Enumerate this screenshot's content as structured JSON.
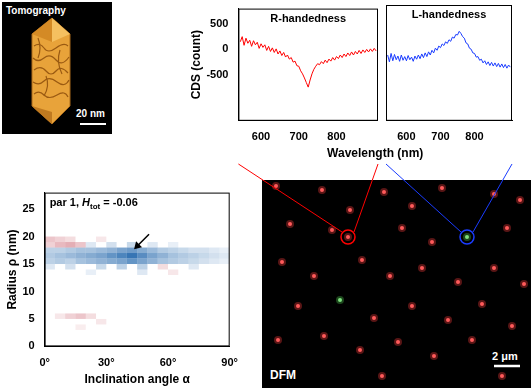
{
  "chart_data": [
    {
      "type": "line",
      "title": "R-handedness",
      "ylabel": "CDS (count)",
      "xlabel": "Wavelength (nm)",
      "xlim": [
        540,
        910
      ],
      "xticks": [
        600,
        700,
        800
      ],
      "ylim": [
        -1400,
        800
      ],
      "yticks": [
        -500,
        0,
        500
      ],
      "grid": false,
      "x": [
        545,
        550,
        555,
        560,
        565,
        570,
        575,
        580,
        585,
        590,
        595,
        600,
        605,
        610,
        615,
        620,
        625,
        630,
        635,
        640,
        645,
        650,
        655,
        660,
        665,
        670,
        675,
        680,
        685,
        690,
        695,
        700,
        705,
        710,
        715,
        720,
        725,
        730,
        735,
        740,
        745,
        750,
        755,
        760,
        765,
        770,
        775,
        780,
        785,
        790,
        795,
        800,
        805,
        810,
        815,
        820,
        825,
        830,
        835,
        840,
        845,
        850,
        855,
        860,
        865,
        870,
        875,
        880,
        885,
        890,
        895,
        900,
        905
      ],
      "series": [
        {
          "color": "#ff0000",
          "values": [
            150,
            250,
            80,
            220,
            120,
            180,
            60,
            170,
            90,
            140,
            20,
            110,
            40,
            90,
            -20,
            60,
            -40,
            30,
            -60,
            10,
            -90,
            -30,
            -120,
            -60,
            -150,
            -110,
            -190,
            -160,
            -250,
            -230,
            -320,
            -330,
            -420,
            -480,
            -560,
            -650,
            -740,
            -600,
            -480,
            -390,
            -330,
            -280,
            -300,
            -240,
            -280,
            -210,
            -260,
            -190,
            -230,
            -160,
            -210,
            -140,
            -180,
            -110,
            -160,
            -90,
            -140,
            -70,
            -120,
            -50,
            -110,
            -40,
            -90,
            -20,
            -80,
            -10,
            -60,
            0,
            -50,
            10,
            -40,
            20,
            -30
          ]
        }
      ]
    },
    {
      "type": "line",
      "title": "L-handedness",
      "tick_labels": "x",
      "xlim": [
        540,
        910
      ],
      "xticks": [
        600,
        700,
        800
      ],
      "ylim": [
        -1400,
        800
      ],
      "yticks": [
        -500,
        0,
        500
      ],
      "grid": false,
      "x": [
        545,
        550,
        555,
        560,
        565,
        570,
        575,
        580,
        585,
        590,
        595,
        600,
        605,
        610,
        615,
        620,
        625,
        630,
        635,
        640,
        645,
        650,
        655,
        660,
        665,
        670,
        675,
        680,
        685,
        690,
        695,
        700,
        705,
        710,
        715,
        720,
        725,
        730,
        735,
        740,
        745,
        750,
        755,
        760,
        765,
        770,
        775,
        780,
        785,
        790,
        795,
        800,
        805,
        810,
        815,
        820,
        825,
        830,
        835,
        840,
        845,
        850,
        855,
        860,
        865,
        870,
        875,
        880,
        885,
        890,
        895,
        900,
        905
      ],
      "series": [
        {
          "color": "#1a3cff",
          "values": [
            -150,
            -280,
            -120,
            -260,
            -140,
            -240,
            -170,
            -270,
            -150,
            -250,
            -180,
            -260,
            -160,
            -240,
            -190,
            -270,
            -170,
            -230,
            -150,
            -220,
            -130,
            -200,
            -110,
            -180,
            -90,
            -150,
            -60,
            -110,
            -20,
            -60,
            20,
            -10,
            60,
            30,
            100,
            70,
            140,
            110,
            190,
            170,
            240,
            230,
            300,
            260,
            200,
            170,
            80,
            60,
            -20,
            -40,
            -110,
            -120,
            -190,
            -180,
            -250,
            -230,
            -300,
            -260,
            -330,
            -280,
            -350,
            -290,
            -360,
            -300,
            -370,
            -310,
            -380,
            -320,
            -390,
            -330,
            -400,
            -340,
            -380
          ]
        }
      ]
    },
    {
      "type": "heatmap",
      "title_parts": [
        "par 1, ",
        "H",
        "tot",
        " = -0.06"
      ],
      "xlabel": "Inclination angle α",
      "ylabel": "Radius ρ (nm)",
      "xlim": [
        0,
        90
      ],
      "xticks": [
        {
          "value": 0,
          "label": "0°"
        },
        {
          "value": 30,
          "label": "30°"
        },
        {
          "value": 60,
          "label": "60°"
        },
        {
          "value": 90,
          "label": "90°"
        }
      ],
      "ylim": [
        0,
        28
      ],
      "yticks": [
        0,
        5,
        10,
        15,
        20,
        25
      ],
      "grid": false,
      "cell_size": {
        "x": 5,
        "y": 1
      },
      "colorbar": {
        "range": [
          -1,
          1
        ],
        "colors": [
          "#2166ac",
          "#b2182b"
        ]
      },
      "cells": [
        [
          20,
          13,
          -0.1
        ],
        [
          45,
          13,
          -0.15
        ],
        [
          60,
          13,
          0.1
        ],
        [
          0,
          14,
          -0.15
        ],
        [
          10,
          14,
          -0.2
        ],
        [
          25,
          14,
          -0.25
        ],
        [
          35,
          14,
          -0.3
        ],
        [
          45,
          14,
          -0.3
        ],
        [
          55,
          14,
          0.15
        ],
        [
          70,
          14,
          -0.15
        ],
        [
          0,
          15,
          -0.3
        ],
        [
          5,
          15,
          -0.35
        ],
        [
          10,
          15,
          -0.3
        ],
        [
          15,
          15,
          -0.4
        ],
        [
          20,
          15,
          -0.45
        ],
        [
          25,
          15,
          -0.5
        ],
        [
          30,
          15,
          -0.55
        ],
        [
          35,
          15,
          -0.6
        ],
        [
          40,
          15,
          -0.7
        ],
        [
          45,
          15,
          -0.6
        ],
        [
          50,
          15,
          -0.5
        ],
        [
          55,
          15,
          -0.4
        ],
        [
          60,
          15,
          -0.35
        ],
        [
          65,
          15,
          -0.3
        ],
        [
          70,
          15,
          -0.25
        ],
        [
          75,
          15,
          -0.2
        ],
        [
          80,
          15,
          -0.15
        ],
        [
          85,
          15,
          -0.1
        ],
        [
          0,
          16,
          -0.35
        ],
        [
          5,
          16,
          -0.4
        ],
        [
          10,
          16,
          -0.45
        ],
        [
          15,
          16,
          -0.5
        ],
        [
          20,
          16,
          -0.55
        ],
        [
          25,
          16,
          -0.6
        ],
        [
          30,
          16,
          -0.7
        ],
        [
          35,
          16,
          -0.8
        ],
        [
          40,
          16,
          -0.9
        ],
        [
          45,
          16,
          -0.75
        ],
        [
          50,
          16,
          -0.6
        ],
        [
          55,
          16,
          -0.5
        ],
        [
          60,
          16,
          -0.4
        ],
        [
          65,
          16,
          -0.35
        ],
        [
          70,
          16,
          -0.3
        ],
        [
          75,
          16,
          -0.25
        ],
        [
          80,
          16,
          -0.2
        ],
        [
          85,
          16,
          -0.15
        ],
        [
          0,
          17,
          -0.3
        ],
        [
          5,
          17,
          -0.3
        ],
        [
          10,
          17,
          -0.35
        ],
        [
          15,
          17,
          -0.4
        ],
        [
          20,
          17,
          -0.4
        ],
        [
          25,
          17,
          -0.45
        ],
        [
          30,
          17,
          -0.5
        ],
        [
          35,
          17,
          -0.6
        ],
        [
          40,
          17,
          -0.65
        ],
        [
          45,
          17,
          -0.55
        ],
        [
          50,
          17,
          -0.45
        ],
        [
          55,
          17,
          -0.35
        ],
        [
          60,
          17,
          -0.3
        ],
        [
          65,
          17,
          -0.25
        ],
        [
          70,
          17,
          -0.2
        ],
        [
          75,
          17,
          -0.2
        ],
        [
          80,
          17,
          -0.15
        ],
        [
          85,
          17,
          -0.1
        ],
        [
          0,
          18,
          0.2
        ],
        [
          5,
          18,
          0.3
        ],
        [
          10,
          18,
          0.35
        ],
        [
          15,
          18,
          0.25
        ],
        [
          20,
          18,
          -0.15
        ],
        [
          30,
          18,
          -0.2
        ],
        [
          40,
          18,
          -0.25
        ],
        [
          50,
          18,
          -0.15
        ],
        [
          60,
          18,
          -0.1
        ],
        [
          0,
          19,
          0.25
        ],
        [
          5,
          19,
          0.2
        ],
        [
          10,
          19,
          0.15
        ],
        [
          25,
          19,
          0.1
        ],
        [
          5,
          5,
          0.1
        ],
        [
          10,
          5,
          0.2
        ],
        [
          15,
          5,
          0.25
        ],
        [
          20,
          5,
          0.15
        ],
        [
          25,
          4,
          0.1
        ],
        [
          15,
          3,
          0.08
        ]
      ],
      "arrow": [
        43,
        17.5
      ]
    }
  ],
  "images": [
    {
      "title": "Tomography",
      "scale_bar": "20 nm"
    },
    {
      "title": "DFM",
      "scale_bar": "2 μm"
    }
  ]
}
